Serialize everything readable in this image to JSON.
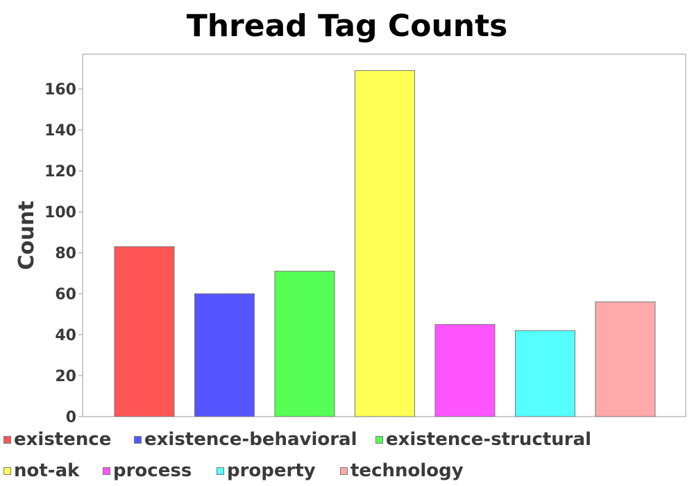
{
  "chart_data": {
    "type": "bar",
    "title": "Thread Tag Counts",
    "xlabel": "",
    "ylabel": "Count",
    "ylim": [
      0,
      177
    ],
    "yticks": [
      0,
      20,
      40,
      60,
      80,
      100,
      120,
      140,
      160
    ],
    "categories": [
      "existence",
      "existence-behavioral",
      "existence-structural",
      "not-ak",
      "process",
      "property",
      "technology"
    ],
    "values": [
      83,
      60,
      71,
      169,
      45,
      42,
      56
    ],
    "colors": [
      "#ff5555",
      "#5555ff",
      "#55ff55",
      "#ffff55",
      "#ff55ff",
      "#55ffff",
      "#ffaaaa"
    ],
    "grid": false,
    "legend": {
      "placement": "bottom",
      "entries": [
        "existence",
        "existence-behavioral",
        "existence-structural",
        "not-ak",
        "process",
        "property",
        "technology"
      ]
    }
  }
}
